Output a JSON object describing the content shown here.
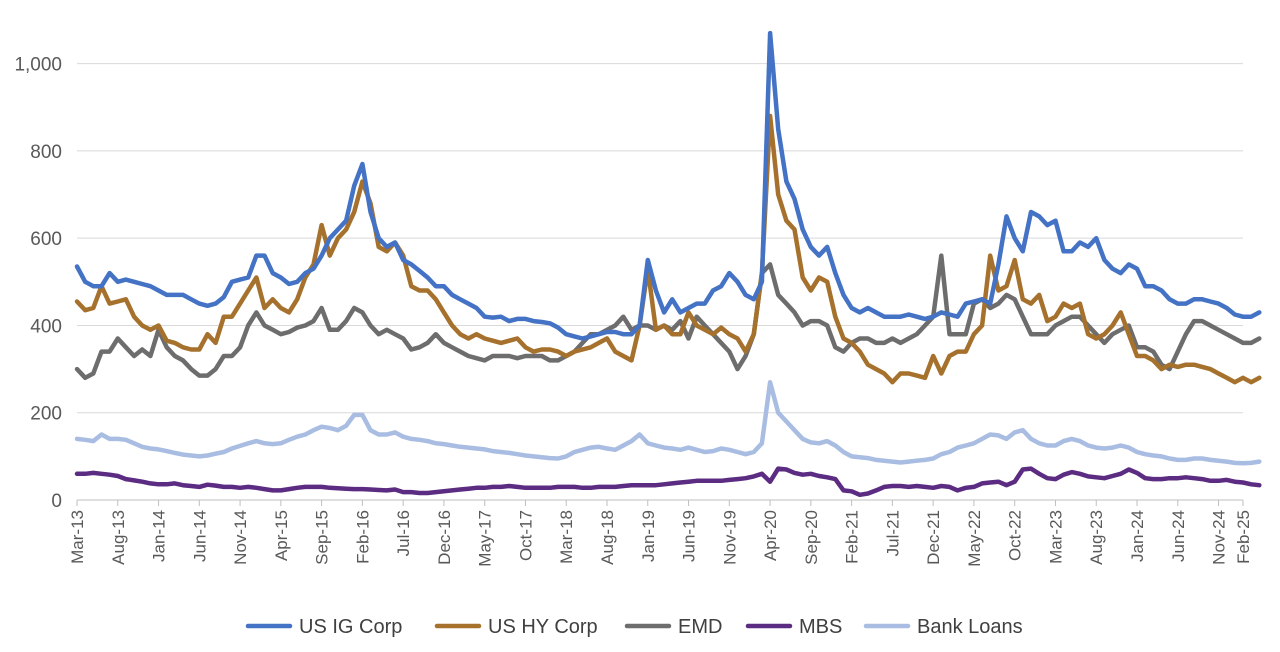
{
  "chart_data": {
    "type": "line",
    "title": "",
    "xlabel": "",
    "ylabel": "",
    "ylim": [
      0,
      1100
    ],
    "yticks": [
      0,
      200,
      400,
      600,
      800,
      1000
    ],
    "ytick_labels": [
      "0",
      "200",
      "400",
      "600",
      "800",
      "1,000"
    ],
    "x_start": "2013-03",
    "x_end": "2025-02",
    "n_months": 144,
    "xtick_labels": [
      "Mar-13",
      "Aug-13",
      "Jan-14",
      "Jun-14",
      "Nov-14",
      "Apr-15",
      "Sep-15",
      "Feb-16",
      "Jul-16",
      "Dec-16",
      "May-17",
      "Oct-17",
      "Mar-18",
      "Aug-18",
      "Jan-19",
      "Jun-19",
      "Nov-19",
      "Apr-20",
      "Sep-20",
      "Feb-21",
      "Jul-21",
      "Dec-21",
      "May-22",
      "Oct-22",
      "Mar-23",
      "Aug-23",
      "Jan-24",
      "Jun-24",
      "Nov-24",
      "Feb-25"
    ],
    "xtick_month_index": [
      0,
      5,
      10,
      15,
      20,
      25,
      30,
      35,
      40,
      45,
      50,
      55,
      60,
      65,
      70,
      75,
      80,
      85,
      90,
      95,
      100,
      105,
      110,
      115,
      120,
      125,
      130,
      135,
      140,
      143
    ],
    "grid": true,
    "legend_position": "bottom",
    "series": [
      {
        "name": "US IG Corp",
        "color": "#4472c4",
        "values": [
          535,
          500,
          490,
          490,
          520,
          500,
          505,
          500,
          495,
          490,
          480,
          470,
          470,
          470,
          460,
          450,
          445,
          450,
          465,
          500,
          505,
          510,
          560,
          560,
          520,
          510,
          495,
          500,
          520,
          530,
          560,
          600,
          620,
          640,
          720,
          770,
          660,
          600,
          580,
          590,
          550,
          540,
          525,
          510,
          490,
          490,
          470,
          460,
          450,
          440,
          420,
          418,
          420,
          410,
          415,
          415,
          410,
          408,
          405,
          395,
          380,
          375,
          370,
          375,
          380,
          385,
          385,
          380,
          380,
          400,
          550,
          480,
          430,
          460,
          430,
          440,
          450,
          450,
          480,
          490,
          520,
          500,
          470,
          460,
          500,
          1070,
          850,
          730,
          690,
          620,
          580,
          560,
          580,
          520,
          470,
          440,
          430,
          440,
          430,
          420,
          420,
          420,
          425,
          420,
          415,
          420,
          430,
          425,
          420,
          450,
          455,
          460,
          450,
          540,
          650,
          600,
          570,
          660,
          650,
          630,
          640,
          570,
          570,
          590,
          580,
          600,
          550,
          530,
          520,
          540,
          530,
          490,
          490,
          480,
          460,
          450,
          450,
          460,
          460,
          455,
          450,
          440,
          425,
          420,
          420,
          430
        ]
      },
      {
        "name": "US HY Corp",
        "color": "#a5712c",
        "values": [
          455,
          435,
          440,
          490,
          450,
          455,
          460,
          420,
          400,
          390,
          400,
          365,
          360,
          350,
          345,
          345,
          380,
          360,
          420,
          420,
          450,
          480,
          510,
          440,
          460,
          440,
          430,
          460,
          510,
          540,
          630,
          560,
          600,
          620,
          660,
          730,
          680,
          580,
          570,
          590,
          560,
          490,
          480,
          480,
          460,
          430,
          400,
          380,
          370,
          380,
          370,
          365,
          360,
          365,
          370,
          350,
          340,
          345,
          345,
          340,
          330,
          340,
          345,
          350,
          360,
          370,
          340,
          330,
          320,
          400,
          530,
          390,
          400,
          380,
          380,
          430,
          400,
          390,
          380,
          395,
          380,
          370,
          340,
          380,
          520,
          880,
          700,
          640,
          620,
          510,
          480,
          510,
          500,
          420,
          370,
          360,
          340,
          310,
          300,
          290,
          270,
          290,
          290,
          285,
          280,
          330,
          290,
          330,
          340,
          340,
          380,
          400,
          560,
          480,
          490,
          550,
          460,
          450,
          470,
          410,
          420,
          450,
          440,
          450,
          380,
          370,
          380,
          400,
          430,
          380,
          330,
          330,
          320,
          300,
          310,
          305,
          310,
          310,
          305,
          300,
          290,
          280,
          270,
          280,
          270,
          280
        ]
      },
      {
        "name": "EMD",
        "color": "#6d6d6d",
        "values": [
          300,
          280,
          290,
          340,
          340,
          370,
          350,
          330,
          345,
          330,
          390,
          350,
          330,
          320,
          300,
          285,
          285,
          300,
          330,
          330,
          350,
          400,
          430,
          400,
          390,
          380,
          385,
          395,
          400,
          410,
          440,
          390,
          390,
          410,
          440,
          430,
          400,
          380,
          390,
          380,
          370,
          345,
          350,
          360,
          380,
          360,
          350,
          340,
          330,
          325,
          320,
          330,
          330,
          330,
          325,
          330,
          330,
          330,
          320,
          320,
          330,
          340,
          360,
          380,
          380,
          390,
          400,
          420,
          390,
          400,
          400,
          390,
          400,
          390,
          410,
          370,
          420,
          400,
          380,
          360,
          340,
          300,
          330,
          380,
          520,
          540,
          470,
          450,
          430,
          400,
          410,
          410,
          400,
          350,
          340,
          360,
          370,
          370,
          360,
          360,
          370,
          360,
          370,
          380,
          400,
          420,
          560,
          380,
          380,
          380,
          450,
          460,
          440,
          450,
          470,
          460,
          420,
          380,
          380,
          380,
          400,
          410,
          420,
          420,
          400,
          380,
          360,
          380,
          390,
          400,
          350,
          350,
          340,
          310,
          300,
          340,
          380,
          410,
          410,
          400,
          390,
          380,
          370,
          360,
          360,
          370
        ]
      },
      {
        "name": "MBS",
        "color": "#5b2c82",
        "values": [
          60,
          60,
          62,
          60,
          58,
          55,
          48,
          45,
          42,
          38,
          36,
          36,
          38,
          34,
          32,
          30,
          35,
          33,
          30,
          30,
          28,
          30,
          28,
          25,
          22,
          22,
          25,
          28,
          30,
          30,
          30,
          28,
          27,
          26,
          25,
          25,
          24,
          23,
          22,
          24,
          18,
          18,
          16,
          16,
          18,
          20,
          22,
          24,
          26,
          28,
          28,
          30,
          30,
          32,
          30,
          28,
          28,
          28,
          28,
          30,
          30,
          30,
          28,
          28,
          30,
          30,
          30,
          32,
          34,
          34,
          34,
          34,
          36,
          38,
          40,
          42,
          44,
          44,
          44,
          44,
          46,
          48,
          50,
          54,
          60,
          42,
          72,
          70,
          62,
          58,
          60,
          55,
          52,
          48,
          22,
          20,
          12,
          15,
          22,
          30,
          32,
          32,
          30,
          32,
          30,
          28,
          32,
          30,
          22,
          28,
          30,
          38,
          40,
          42,
          34,
          42,
          70,
          72,
          60,
          50,
          48,
          58,
          64,
          60,
          54,
          52,
          50,
          55,
          60,
          70,
          62,
          50,
          48,
          48,
          50,
          50,
          52,
          50,
          48,
          44,
          44,
          46,
          42,
          40,
          36,
          34
        ]
      },
      {
        "name": "Bank Loans",
        "color": "#a9bde2",
        "values": [
          140,
          138,
          135,
          150,
          140,
          140,
          138,
          130,
          122,
          118,
          116,
          112,
          108,
          104,
          102,
          100,
          102,
          106,
          110,
          118,
          124,
          130,
          135,
          130,
          128,
          130,
          138,
          145,
          150,
          160,
          168,
          165,
          160,
          170,
          195,
          195,
          160,
          150,
          150,
          155,
          145,
          140,
          138,
          135,
          130,
          128,
          125,
          122,
          120,
          118,
          116,
          112,
          110,
          108,
          105,
          102,
          100,
          98,
          96,
          95,
          100,
          110,
          115,
          120,
          122,
          118,
          115,
          125,
          135,
          150,
          130,
          125,
          120,
          118,
          115,
          120,
          115,
          110,
          112,
          118,
          115,
          110,
          105,
          110,
          130,
          270,
          200,
          180,
          160,
          140,
          132,
          130,
          135,
          125,
          110,
          100,
          98,
          96,
          92,
          90,
          88,
          86,
          88,
          90,
          92,
          95,
          105,
          110,
          120,
          125,
          130,
          140,
          150,
          148,
          140,
          155,
          160,
          140,
          130,
          125,
          125,
          135,
          140,
          135,
          125,
          120,
          118,
          120,
          125,
          120,
          110,
          105,
          102,
          100,
          95,
          92,
          92,
          95,
          95,
          92,
          90,
          88,
          85,
          84,
          85,
          88
        ]
      }
    ]
  }
}
